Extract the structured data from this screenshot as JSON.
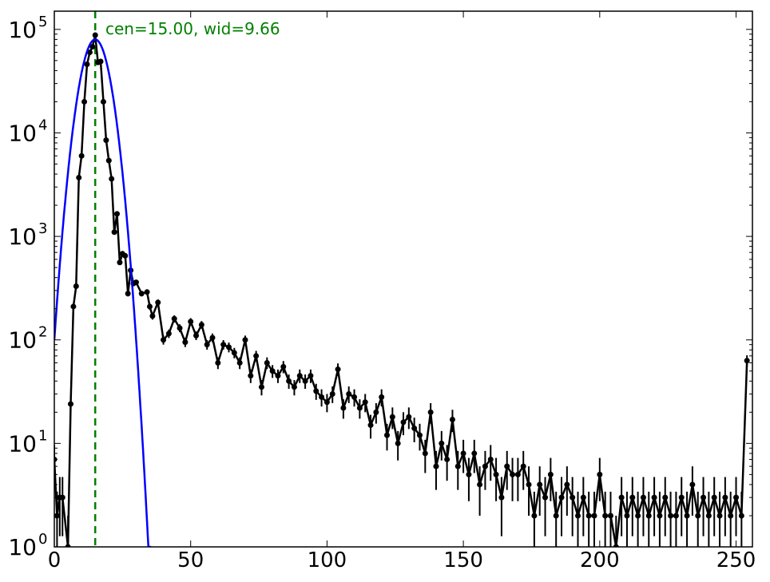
{
  "chart_data": {
    "type": "line",
    "title": "",
    "xlabel": "",
    "ylabel": "",
    "xlim": [
      0,
      256
    ],
    "ylim": [
      1,
      150000
    ],
    "yscale": "log",
    "grid": false,
    "annotation": "cen=15.00, wid=9.66",
    "fit_center": 15.0,
    "fit_width": 9.66,
    "x_ticks": [
      0,
      50,
      100,
      150,
      200,
      250
    ],
    "x_tick_labels": [
      "0",
      "50",
      "100",
      "150",
      "200",
      "250"
    ],
    "y_ticks": [
      1,
      10,
      100,
      1000,
      10000,
      100000
    ],
    "y_tick_labels": [
      {
        "base": "10",
        "exp": "0"
      },
      {
        "base": "10",
        "exp": "1"
      },
      {
        "base": "10",
        "exp": "2"
      },
      {
        "base": "10",
        "exp": "3"
      },
      {
        "base": "10",
        "exp": "4"
      },
      {
        "base": "10",
        "exp": "5"
      }
    ],
    "colors": {
      "data": "#000000",
      "fit": "#0000ff",
      "center_line": "#008000"
    },
    "series": [
      {
        "kind": "data_with_errorbars",
        "x": [
          0,
          1,
          2,
          3,
          5,
          6,
          7,
          8,
          9,
          10,
          11,
          12,
          13,
          14,
          15,
          16,
          17,
          18,
          19,
          20,
          21,
          22,
          23,
          24,
          25,
          26,
          27,
          28,
          29,
          30,
          32,
          34,
          35,
          36,
          38,
          40,
          42,
          44,
          46,
          48,
          50,
          52,
          54,
          56,
          58,
          60,
          62,
          64,
          66,
          68,
          70,
          72,
          74,
          76,
          78,
          80,
          82,
          84,
          86,
          88,
          90,
          92,
          94,
          96,
          98,
          100,
          102,
          104,
          106,
          108,
          110,
          112,
          114,
          116,
          118,
          120,
          122,
          124,
          126,
          128,
          130,
          132,
          134,
          136,
          138,
          140,
          142,
          144,
          146,
          148,
          150,
          152,
          154,
          156,
          158,
          160,
          162,
          164,
          166,
          168,
          170,
          172,
          174,
          176,
          178,
          180,
          182,
          184,
          186,
          188,
          190,
          192,
          194,
          196,
          198,
          200,
          202,
          204,
          206,
          208,
          210,
          212,
          214,
          216,
          218,
          220,
          222,
          224,
          226,
          228,
          230,
          232,
          234,
          236,
          238,
          240,
          242,
          244,
          246,
          248,
          250,
          252,
          254
        ],
        "y": [
          7,
          2,
          3,
          3,
          1,
          24,
          210,
          330,
          3700,
          6000,
          20000,
          46000,
          60000,
          68000,
          88000,
          48000,
          49000,
          20000,
          8500,
          5400,
          3600,
          1100,
          1650,
          560,
          680,
          650,
          280,
          470,
          350,
          360,
          280,
          290,
          210,
          170,
          230,
          100,
          115,
          160,
          130,
          95,
          150,
          110,
          140,
          90,
          105,
          60,
          90,
          85,
          75,
          60,
          100,
          45,
          70,
          35,
          60,
          50,
          45,
          55,
          40,
          35,
          45,
          40,
          45,
          32,
          28,
          25,
          30,
          52,
          22,
          30,
          28,
          22,
          25,
          15,
          20,
          28,
          12,
          18,
          10,
          16,
          18,
          14,
          12,
          8,
          20,
          6,
          10,
          7,
          17,
          6,
          8,
          5,
          8,
          4,
          6,
          7,
          5,
          3,
          6,
          5,
          5,
          6,
          4,
          2,
          4,
          3,
          5,
          2,
          3,
          4,
          3,
          2,
          3,
          2,
          2,
          5,
          2,
          2,
          1,
          3,
          2,
          3,
          2,
          3,
          2,
          3,
          2,
          3,
          2,
          2,
          3,
          2,
          4,
          2,
          3,
          2,
          3,
          2,
          3,
          2,
          3,
          2,
          63
        ]
      },
      {
        "kind": "gaussian_fit",
        "center": 15.0,
        "width": 9.66,
        "peak": 80000
      }
    ]
  }
}
